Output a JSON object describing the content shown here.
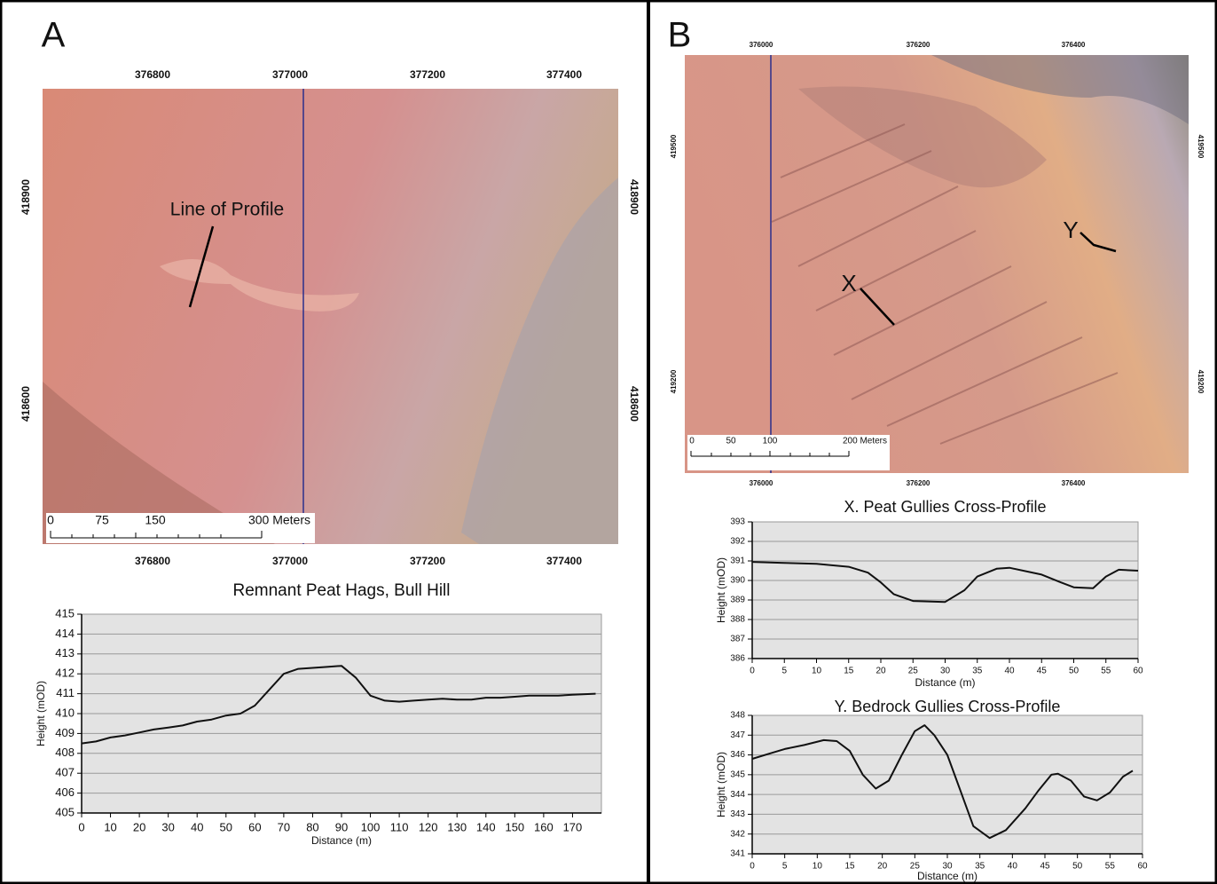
{
  "maps": [
    {
      "letter": "A",
      "top_labels": [
        376800,
        377000,
        377200,
        377400
      ],
      "side_labels": [
        418900,
        418600
      ],
      "annotations": [
        "Line of Profile"
      ],
      "scale_labels": [
        "0",
        "75",
        "150",
        "300 Meters"
      ]
    },
    {
      "letter": "B",
      "top_labels": [
        376000,
        376200,
        376400
      ],
      "side_labels": [
        419500,
        419200
      ],
      "annotations": [
        "X",
        "Y"
      ],
      "scale_labels": [
        "0",
        "50",
        "100",
        "200 Meters"
      ]
    }
  ],
  "chart_data": [
    {
      "type": "line",
      "title": "Remnant Peat Hags, Bull Hill",
      "x_label": "Distance (m)",
      "y_label": "Height (mOD)",
      "color": "#111111",
      "grid": true,
      "x": [
        0,
        5,
        10,
        15,
        20,
        25,
        30,
        35,
        40,
        45,
        50,
        55,
        60,
        65,
        70,
        75,
        80,
        85,
        90,
        95,
        100,
        105,
        110,
        115,
        120,
        125,
        130,
        135,
        140,
        145,
        150,
        155,
        160,
        165,
        170,
        178
      ],
      "values": [
        408.5,
        408.6,
        408.8,
        408.9,
        409.05,
        409.2,
        409.3,
        409.4,
        409.6,
        409.7,
        409.9,
        410.0,
        410.4,
        411.2,
        412.0,
        412.25,
        412.3,
        412.35,
        412.4,
        411.8,
        410.9,
        410.65,
        410.6,
        410.65,
        410.7,
        410.75,
        410.7,
        410.7,
        410.8,
        410.8,
        410.85,
        410.9,
        410.9,
        410.9,
        410.95,
        411.0
      ],
      "xlim": [
        0,
        180
      ],
      "xticks": [
        0,
        10,
        20,
        30,
        40,
        50,
        60,
        70,
        80,
        90,
        100,
        110,
        120,
        130,
        140,
        150,
        160,
        170
      ],
      "ylim": [
        405,
        415
      ],
      "yticks": [
        405,
        406,
        407,
        408,
        409,
        410,
        411,
        412,
        413,
        414,
        415
      ]
    },
    {
      "type": "line",
      "title": "X. Peat Gullies Cross-Profile",
      "x_label": "Distance (m)",
      "y_label": "Height (mOD)",
      "color": "#111111",
      "grid": true,
      "x": [
        0,
        5,
        10,
        15,
        18,
        20,
        22,
        25,
        30,
        33,
        35,
        38,
        40,
        45,
        48,
        50,
        53,
        55,
        57,
        60
      ],
      "values": [
        390.95,
        390.9,
        390.85,
        390.7,
        390.4,
        389.9,
        389.3,
        388.95,
        388.9,
        389.5,
        390.2,
        390.6,
        390.65,
        390.3,
        389.9,
        389.65,
        389.6,
        390.2,
        390.55,
        390.5
      ],
      "xlim": [
        0,
        60
      ],
      "xticks": [
        0,
        5,
        10,
        15,
        20,
        25,
        30,
        35,
        40,
        45,
        50,
        55,
        60
      ],
      "ylim": [
        386,
        393
      ],
      "yticks": [
        386,
        387,
        388,
        389,
        390,
        391,
        392,
        393
      ]
    },
    {
      "type": "line",
      "title": "Y. Bedrock Gullies Cross-Profile",
      "x_label": "Distance (m)",
      "y_label": "Height (mOD)",
      "color": "#111111",
      "grid": true,
      "x": [
        0,
        3,
        5,
        8,
        11,
        13,
        15,
        17,
        19,
        21,
        23,
        25,
        26.5,
        28,
        30,
        32,
        34,
        36.5,
        39,
        42,
        44,
        46,
        47,
        49,
        51,
        53,
        55,
        57,
        58.5
      ],
      "values": [
        345.8,
        346.1,
        346.3,
        346.5,
        346.75,
        346.7,
        346.2,
        345.0,
        344.3,
        344.7,
        346.0,
        347.2,
        347.5,
        347.0,
        346.0,
        344.2,
        342.4,
        341.8,
        342.2,
        343.3,
        344.2,
        345.0,
        345.05,
        344.7,
        343.9,
        343.7,
        344.1,
        344.9,
        345.2
      ],
      "xlim": [
        0,
        60
      ],
      "xticks": [
        0,
        5,
        10,
        15,
        20,
        25,
        30,
        35,
        40,
        45,
        50,
        55,
        60
      ],
      "ylim": [
        341,
        348
      ],
      "yticks": [
        341,
        342,
        343,
        344,
        345,
        346,
        347,
        348
      ]
    }
  ]
}
